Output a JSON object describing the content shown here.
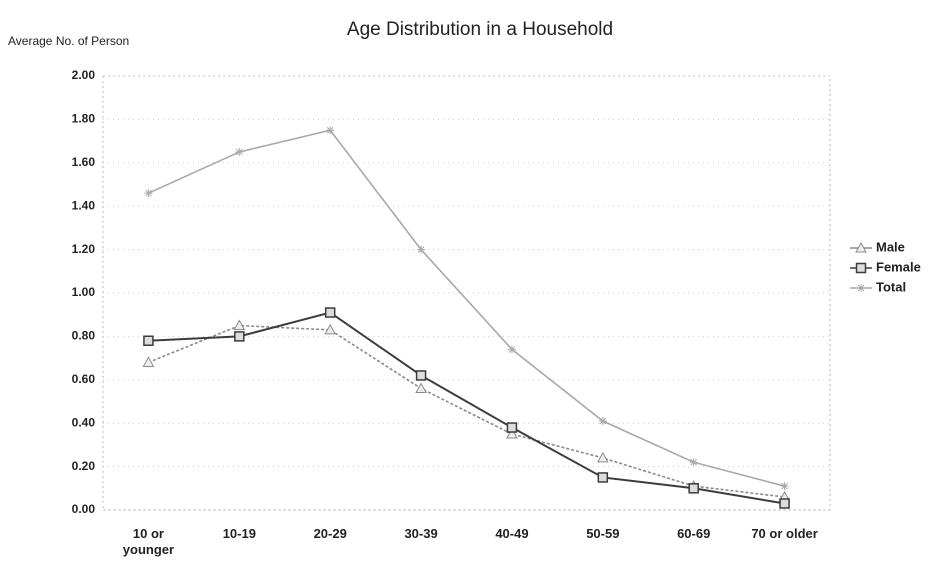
{
  "chart_data": {
    "type": "line",
    "title": "Age Distribution in a Household",
    "y_label": "Average No. of Person",
    "categories": [
      "10 or younger",
      "10-19",
      "20-29",
      "30-39",
      "40-49",
      "50-59",
      "60-69",
      "70 or older"
    ],
    "series": [
      {
        "name": "Male",
        "color": "#8a8a8a",
        "marker": "triangle",
        "values": [
          0.68,
          0.85,
          0.83,
          0.56,
          0.35,
          0.24,
          0.11,
          0.06
        ]
      },
      {
        "name": "Female",
        "color": "#3c3c3c",
        "marker": "square",
        "values": [
          0.78,
          0.8,
          0.91,
          0.62,
          0.38,
          0.15,
          0.1,
          0.03
        ]
      },
      {
        "name": "Total",
        "color": "#a8a8a8",
        "marker": "star",
        "values": [
          1.46,
          1.65,
          1.75,
          1.2,
          0.74,
          0.41,
          0.22,
          0.11
        ]
      }
    ],
    "ylim": [
      0,
      2
    ],
    "yticks": [
      {
        "value": 0,
        "label": "0.00"
      },
      {
        "value": 0.2,
        "label": "0.20"
      },
      {
        "value": 0.4,
        "label": "0.40"
      },
      {
        "value": 0.6,
        "label": "0.60"
      },
      {
        "value": 0.8,
        "label": "0.80"
      },
      {
        "value": 1,
        "label": "1.00"
      },
      {
        "value": 1.2,
        "label": "1.20"
      },
      {
        "value": 1.4,
        "label": "1.40"
      },
      {
        "value": 1.6,
        "label": "1.60"
      },
      {
        "value": 1.8,
        "label": "1.80"
      },
      {
        "value": 2,
        "label": "2.00"
      }
    ],
    "grid": true,
    "legend": "right"
  }
}
